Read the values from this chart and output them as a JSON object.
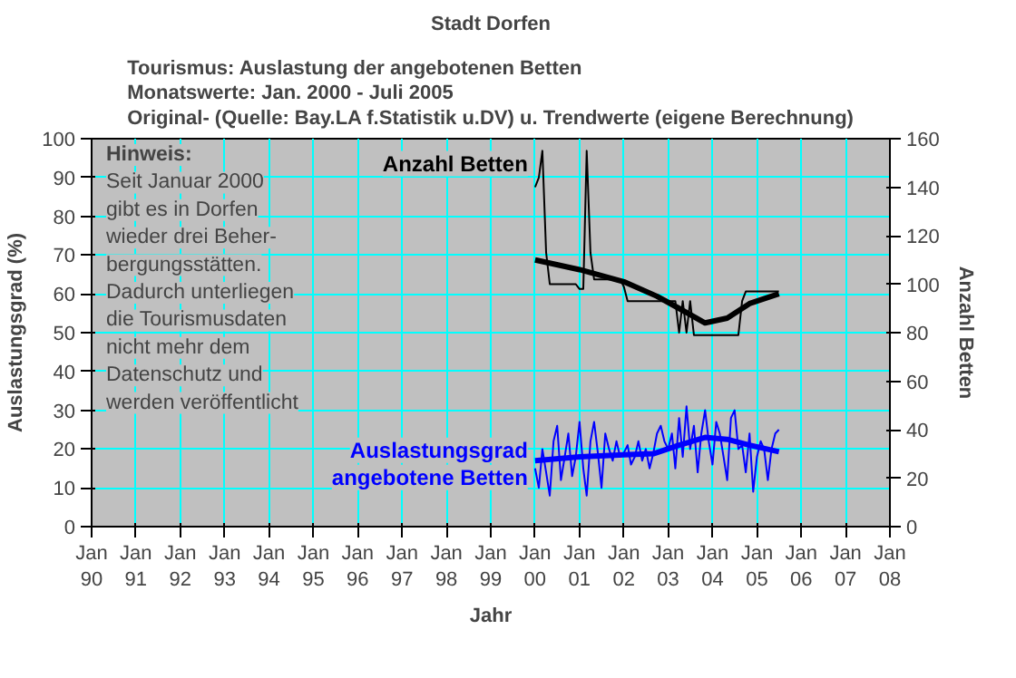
{
  "chart_data": {
    "type": "line",
    "title": "Stadt Dorfen",
    "subtitle": "Tourismus: Auslastung der angebotenen Betten\nMonatswerte: Jan. 2000 - Juli 2005\nOriginal- (Quelle: Bay.LA f.Statistik u.DV) u. Trendwerte (eigene Berechnung)",
    "xlabel": "Jahr",
    "ylabel": "Auslastungsgrad (%)",
    "y2label": "Anzahl Betten",
    "annotations": [
      "Hinweis:\nSeit Januar 2000\ngibt es in Dorfen\nwieder drei Beher-\nbergungsstätten.\nDadurch unterliegen\ndie Tourismusdaten\nnicht mehr dem\nDatenschutz und\nwerden veröffentlicht"
    ],
    "xlim": [
      "1990-01",
      "2008-01"
    ],
    "xticks": [
      {
        "value": "1990-01",
        "label": "Jan\n90"
      },
      {
        "value": "1991-01",
        "label": "Jan\n91"
      },
      {
        "value": "1992-01",
        "label": "Jan\n92"
      },
      {
        "value": "1993-01",
        "label": "Jan\n93"
      },
      {
        "value": "1994-01",
        "label": "Jan\n94"
      },
      {
        "value": "1995-01",
        "label": "Jan\n95"
      },
      {
        "value": "1996-01",
        "label": "Jan\n96"
      },
      {
        "value": "1997-01",
        "label": "Jan\n97"
      },
      {
        "value": "1998-01",
        "label": "Jan\n98"
      },
      {
        "value": "1999-01",
        "label": "Jan\n99"
      },
      {
        "value": "2000-01",
        "label": "Jan\n00"
      },
      {
        "value": "2001-01",
        "label": "Jan\n01"
      },
      {
        "value": "2002-01",
        "label": "Jan\n02"
      },
      {
        "value": "2003-01",
        "label": "Jan\n03"
      },
      {
        "value": "2004-01",
        "label": "Jan\n04"
      },
      {
        "value": "2005-01",
        "label": "Jan\n05"
      },
      {
        "value": "2006-01",
        "label": "Jan\n06"
      },
      {
        "value": "2007-01",
        "label": "Jan\n07"
      },
      {
        "value": "2008-01",
        "label": "Jan\n08"
      }
    ],
    "ylim": [
      0,
      100
    ],
    "yticks": [
      0,
      10,
      20,
      30,
      40,
      50,
      60,
      70,
      80,
      90,
      100
    ],
    "y2lim": [
      0,
      160
    ],
    "y2ticks": [
      0,
      20,
      40,
      60,
      80,
      100,
      120,
      140,
      160
    ],
    "grid": true,
    "marker": "none",
    "line_style": "solid",
    "series": [
      {
        "name": "Anzahl Betten",
        "color": "#000000",
        "axis": "y2",
        "x": [
          "2000-01",
          "2000-02",
          "2000-03",
          "2000-04",
          "2000-05",
          "2000-12",
          "2001-01",
          "2001-02",
          "2001-03",
          "2001-04",
          "2001-05",
          "2001-12",
          "2002-01",
          "2002-02",
          "2003-03",
          "2003-04",
          "2003-05",
          "2003-06",
          "2003-07",
          "2003-08",
          "2004-08",
          "2004-09",
          "2004-10",
          "2005-07"
        ],
        "values": [
          140,
          144,
          155,
          113,
          100,
          100,
          98,
          98,
          155,
          113,
          102,
          102,
          99,
          93,
          93,
          80,
          93,
          80,
          93,
          79,
          79,
          93,
          97,
          97
        ]
      },
      {
        "color": "#000000",
        "axis": "y2",
        "x": [
          "2000-01",
          "2001-01",
          "2002-01",
          "2002-10",
          "2003-04",
          "2003-11",
          "2004-05",
          "2004-11",
          "2005-07"
        ],
        "values": [
          110,
          106,
          101,
          95,
          90,
          84,
          86,
          92,
          96
        ]
      },
      {
        "name": "Auslastungsgrad\nangebotene Betten",
        "color": "#0000ff",
        "x": [
          "2000-01",
          "2000-02",
          "2000-03",
          "2000-04",
          "2000-05",
          "2000-06",
          "2000-07",
          "2000-08",
          "2000-09",
          "2000-10",
          "2000-11",
          "2000-12",
          "2001-01",
          "2001-02",
          "2001-03",
          "2001-04",
          "2001-05",
          "2001-06",
          "2001-07",
          "2001-08",
          "2001-09",
          "2001-10",
          "2001-11",
          "2001-12",
          "2002-01",
          "2002-02",
          "2002-03",
          "2002-04",
          "2002-05",
          "2002-06",
          "2002-07",
          "2002-08",
          "2002-09",
          "2002-10",
          "2002-11",
          "2002-12",
          "2003-01",
          "2003-02",
          "2003-03",
          "2003-04",
          "2003-05",
          "2003-06",
          "2003-07",
          "2003-08",
          "2003-09",
          "2003-10",
          "2003-11",
          "2003-12",
          "2004-01",
          "2004-02",
          "2004-03",
          "2004-04",
          "2004-05",
          "2004-06",
          "2004-07",
          "2004-08",
          "2004-09",
          "2004-10",
          "2004-11",
          "2004-12",
          "2005-01",
          "2005-02",
          "2005-03",
          "2005-04",
          "2005-05",
          "2005-06",
          "2005-07"
        ],
        "values": [
          15,
          10,
          20,
          14,
          8,
          22,
          26,
          12,
          18,
          24,
          13,
          18,
          27,
          15,
          8,
          22,
          27,
          19,
          10,
          24,
          20,
          17,
          22,
          18,
          19,
          21,
          16,
          18,
          22,
          17,
          20,
          15,
          19,
          24,
          26,
          22,
          20,
          24,
          15,
          28,
          18,
          31,
          20,
          26,
          14,
          24,
          30,
          22,
          16,
          27,
          24,
          18,
          12,
          28,
          30,
          20,
          21,
          14,
          24,
          9,
          18,
          22,
          20,
          12,
          20,
          24,
          25
        ]
      },
      {
        "color": "#0000ff",
        "x": [
          "2000-01",
          "2001-01",
          "2002-01",
          "2002-09",
          "2003-04",
          "2003-11",
          "2004-05",
          "2004-11",
          "2005-07"
        ],
        "values": [
          17,
          18,
          18.5,
          18.8,
          21,
          23,
          22.5,
          21,
          19.3
        ]
      }
    ]
  }
}
